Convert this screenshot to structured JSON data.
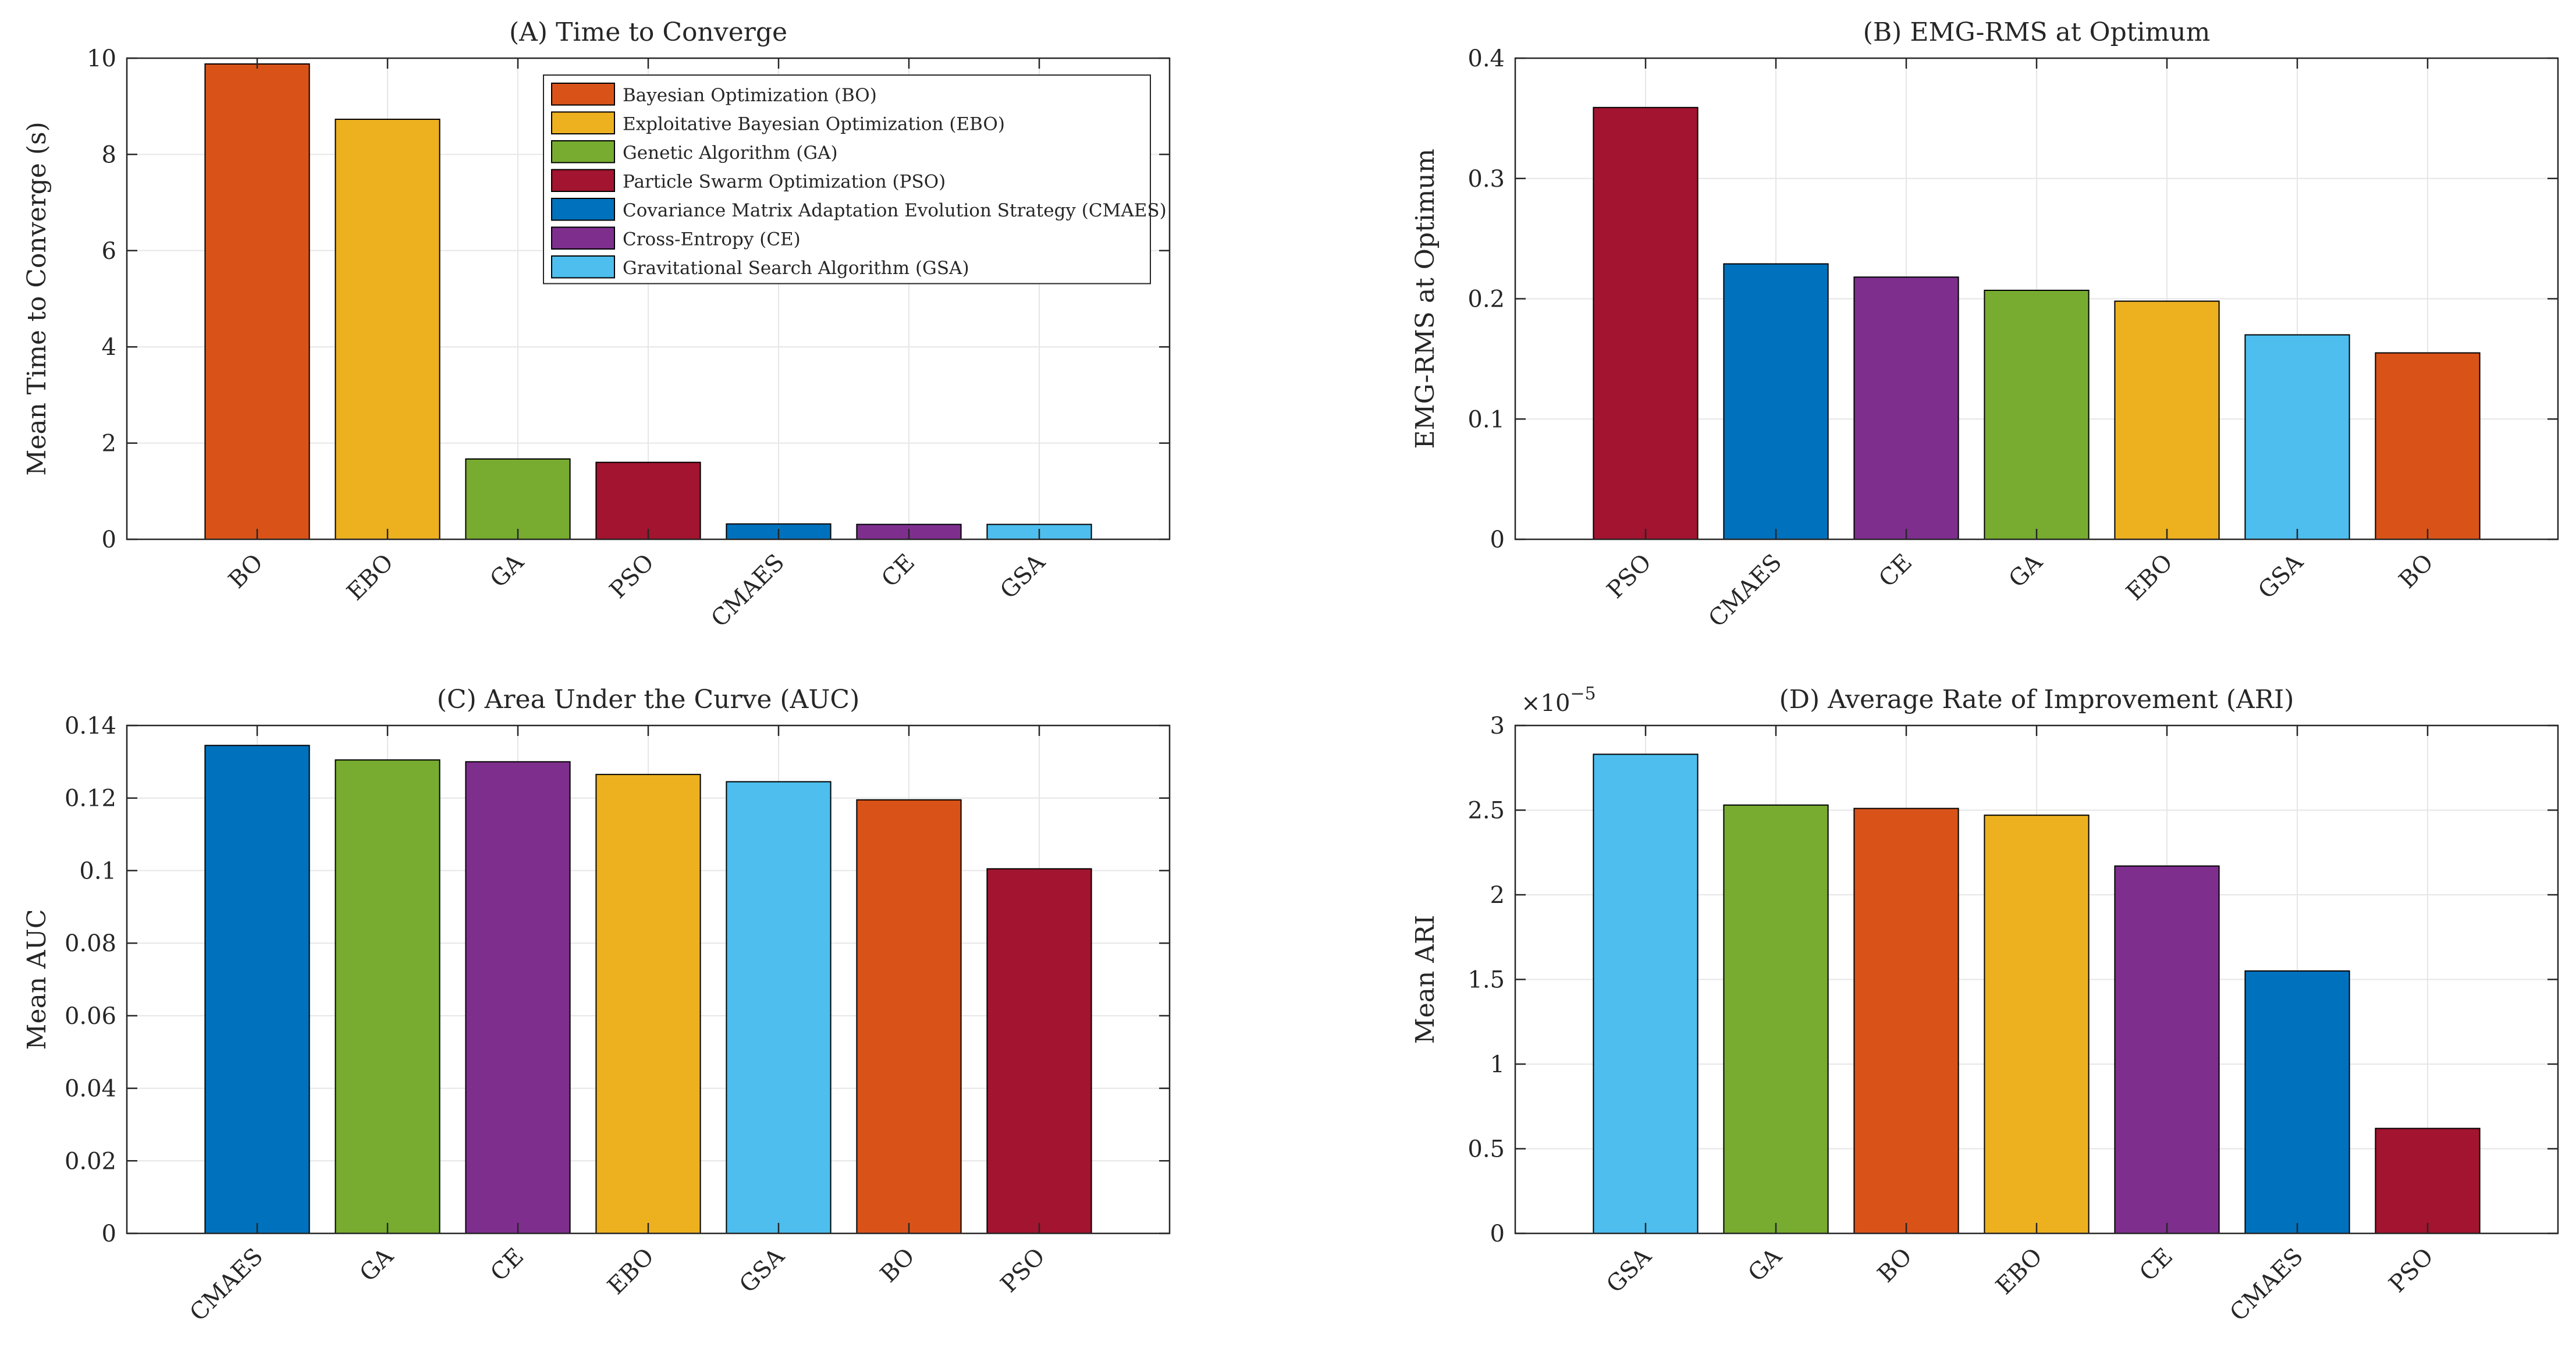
{
  "colors": {
    "BO": "#D95319",
    "EBO": "#EDB120",
    "GA": "#77AC30",
    "PSO": "#A2142F",
    "CMAES": "#0072BD",
    "CE": "#7E2F8E",
    "GSA": "#4DBEEE"
  },
  "chart_data": [
    {
      "id": "A",
      "type": "bar",
      "title": "(A) Time to Converge",
      "xlabel": "",
      "ylabel": "Mean Time to Converge (s)",
      "ylim": [
        0,
        10
      ],
      "yticks": [
        0,
        2,
        4,
        6,
        8,
        10
      ],
      "ytick_labels": [
        "0",
        "2",
        "4",
        "6",
        "8",
        "10"
      ],
      "exponent_label": "",
      "grid": true,
      "categories": [
        "BO",
        "EBO",
        "GA",
        "PSO",
        "CMAES",
        "CE",
        "GSA"
      ],
      "values": [
        9.88,
        8.73,
        1.67,
        1.6,
        0.32,
        0.31,
        0.31
      ],
      "legend": {
        "position": "top-right",
        "entries": [
          {
            "key": "BO",
            "label": "Bayesian Optimization (BO)"
          },
          {
            "key": "EBO",
            "label": "Exploitative Bayesian Optimization (EBO)"
          },
          {
            "key": "GA",
            "label": "Genetic Algorithm (GA)"
          },
          {
            "key": "PSO",
            "label": "Particle Swarm Optimization (PSO)"
          },
          {
            "key": "CMAES",
            "label": "Covariance Matrix Adaptation Evolution Strategy (CMAES)"
          },
          {
            "key": "CE",
            "label": "Cross-Entropy (CE)"
          },
          {
            "key": "GSA",
            "label": "Gravitational Search Algorithm (GSA)"
          }
        ]
      }
    },
    {
      "id": "B",
      "type": "bar",
      "title": "(B) EMG-RMS at Optimum",
      "xlabel": "",
      "ylabel": "EMG-RMS at Optimum",
      "ylim": [
        0,
        0.4
      ],
      "yticks": [
        0,
        0.1,
        0.2,
        0.3,
        0.4
      ],
      "ytick_labels": [
        "0",
        "0.1",
        "0.2",
        "0.3",
        "0.4"
      ],
      "exponent_label": "",
      "grid": true,
      "categories": [
        "PSO",
        "CMAES",
        "CE",
        "GA",
        "EBO",
        "GSA",
        "BO"
      ],
      "values": [
        0.359,
        0.229,
        0.218,
        0.207,
        0.198,
        0.17,
        0.155
      ]
    },
    {
      "id": "C",
      "type": "bar",
      "title": "(C) Area Under the Curve (AUC)",
      "xlabel": "",
      "ylabel": "Mean AUC",
      "ylim": [
        0,
        0.14
      ],
      "yticks": [
        0,
        0.02,
        0.04,
        0.06,
        0.08,
        0.1,
        0.12,
        0.14
      ],
      "ytick_labels": [
        "0",
        "0.02",
        "0.04",
        "0.06",
        "0.08",
        "0.1",
        "0.12",
        "0.14"
      ],
      "exponent_label": "",
      "grid": true,
      "categories": [
        "CMAES",
        "GA",
        "CE",
        "EBO",
        "GSA",
        "BO",
        "PSO"
      ],
      "values": [
        0.1345,
        0.1305,
        0.13,
        0.1265,
        0.1245,
        0.1195,
        0.1005
      ]
    },
    {
      "id": "D",
      "type": "bar",
      "title": "(D) Average Rate of Improvement (ARI)",
      "xlabel": "",
      "ylabel": "Mean ARI",
      "ylim": [
        0,
        3
      ],
      "yticks": [
        0,
        0.5,
        1,
        1.5,
        2,
        2.5,
        3
      ],
      "ytick_labels": [
        "0",
        "0.5",
        "1",
        "1.5",
        "2",
        "2.5",
        "3"
      ],
      "exponent_label": "×10",
      "exponent_power": "−5",
      "grid": true,
      "categories": [
        "GSA",
        "GA",
        "BO",
        "EBO",
        "CE",
        "CMAES",
        "PSO"
      ],
      "values": [
        2.83,
        2.53,
        2.51,
        2.47,
        2.17,
        1.55,
        0.62
      ]
    }
  ]
}
